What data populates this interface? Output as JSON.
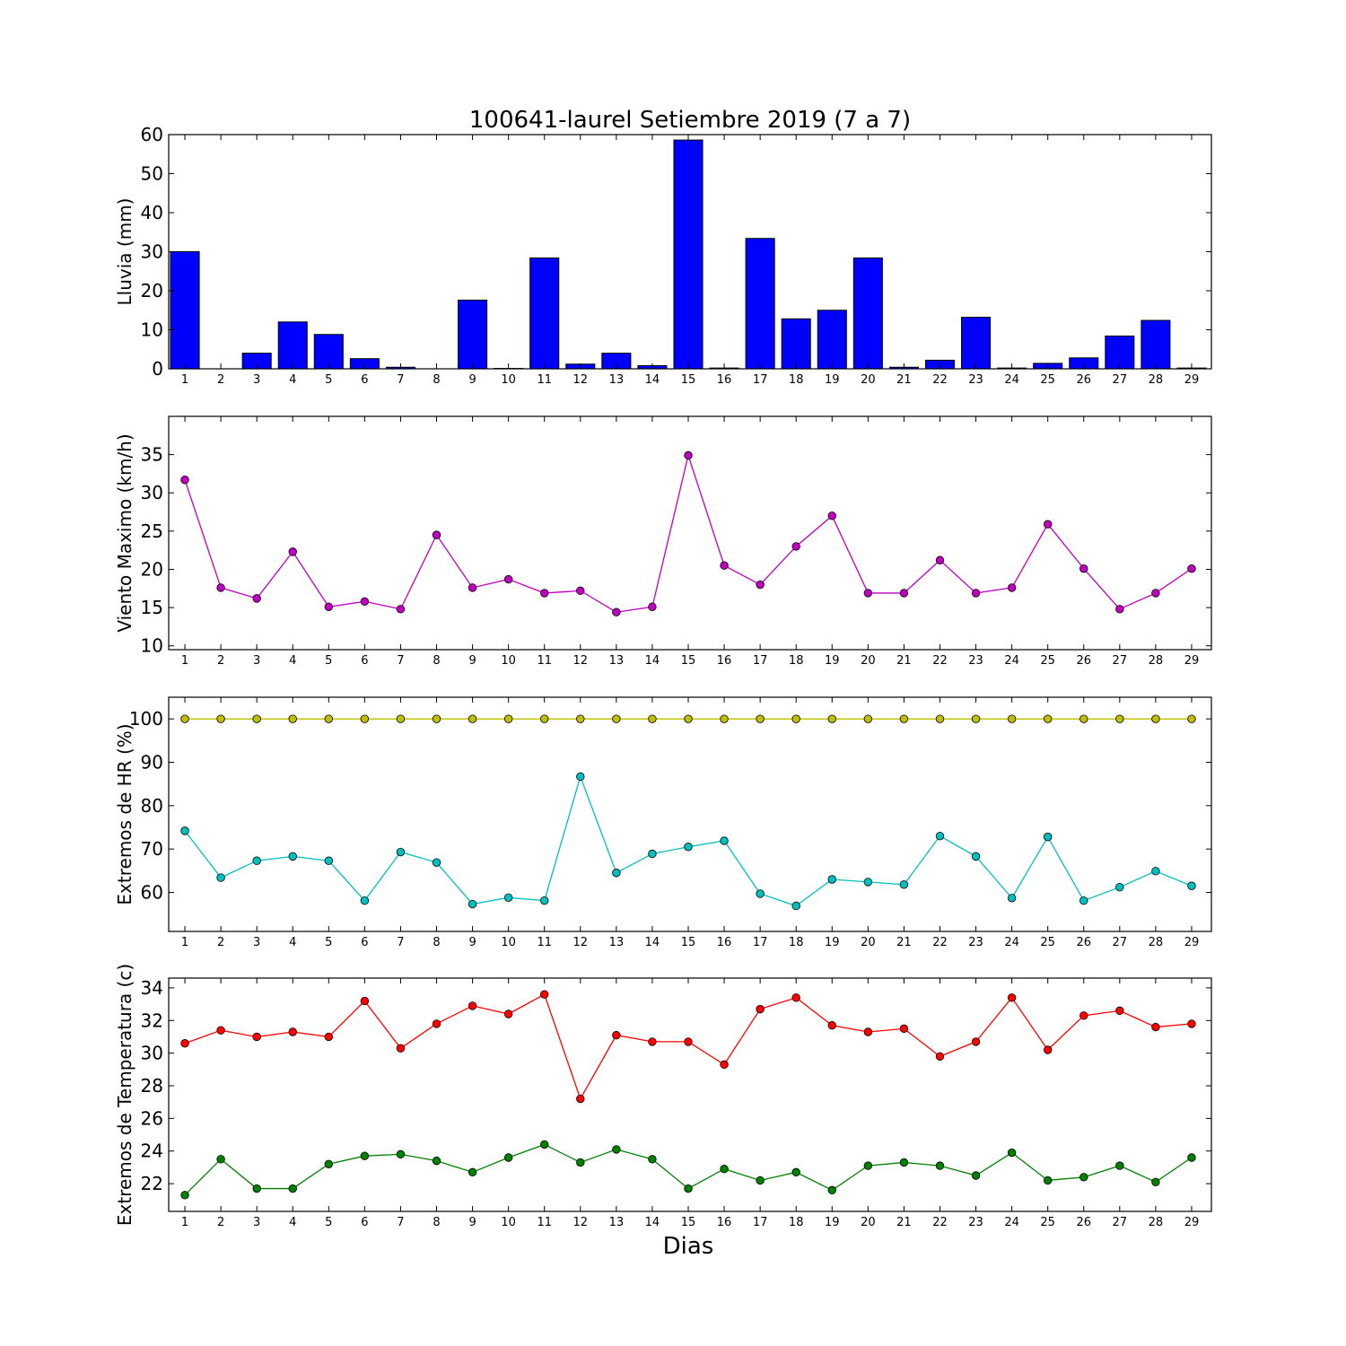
{
  "chart_data": [
    {
      "type": "bar",
      "title": "100641-laurel Setiembre 2019  (7 a 7)",
      "ylabel": "Lluvia (mm)",
      "xlabel": "",
      "categories": [
        "1",
        "2",
        "3",
        "4",
        "5",
        "6",
        "7",
        "8",
        "9",
        "10",
        "11",
        "12",
        "13",
        "14",
        "15",
        "16",
        "17",
        "18",
        "19",
        "20",
        "21",
        "22",
        "23",
        "24",
        "25",
        "26",
        "27",
        "28",
        "29"
      ],
      "values": [
        30.0,
        0.0,
        4.0,
        12.0,
        8.8,
        2.6,
        0.4,
        0.0,
        17.6,
        0.1,
        28.4,
        1.2,
        4.0,
        0.8,
        58.6,
        0.2,
        33.4,
        12.8,
        15.0,
        28.4,
        0.4,
        2.2,
        13.2,
        0.2,
        1.4,
        2.8,
        8.4,
        12.4,
        0.2
      ],
      "ylim": [
        0,
        60
      ],
      "yticks": [
        0,
        10,
        20,
        30,
        40,
        50,
        60
      ],
      "grid": false,
      "color": "#0000ff"
    },
    {
      "type": "line",
      "ylabel": "Viento Maximo (km/h)",
      "xlabel": "",
      "x": [
        1,
        2,
        3,
        4,
        5,
        6,
        7,
        8,
        9,
        10,
        11,
        12,
        13,
        14,
        15,
        16,
        17,
        18,
        19,
        20,
        21,
        22,
        23,
        24,
        25,
        26,
        27,
        28,
        29
      ],
      "series": [
        {
          "values": [
            31.7,
            17.6,
            16.2,
            22.3,
            15.1,
            15.8,
            14.8,
            24.5,
            17.6,
            18.7,
            16.9,
            17.2,
            14.4,
            15.1,
            34.9,
            20.5,
            18.0,
            23.0,
            27.0,
            16.9,
            16.9,
            21.2,
            16.9,
            17.6,
            25.9,
            20.1,
            14.8,
            16.9,
            20.1
          ],
          "color": "#bf00bf"
        }
      ],
      "ylim": [
        9.5,
        40
      ],
      "yticks": [
        10,
        15,
        20,
        25,
        30,
        35
      ],
      "grid": false
    },
    {
      "type": "line",
      "ylabel": "Extremos de HR (%)",
      "xlabel": "",
      "x": [
        1,
        2,
        3,
        4,
        5,
        6,
        7,
        8,
        9,
        10,
        11,
        12,
        13,
        14,
        15,
        16,
        17,
        18,
        19,
        20,
        21,
        22,
        23,
        24,
        25,
        26,
        27,
        28,
        29
      ],
      "series": [
        {
          "values": [
            100,
            100,
            100,
            100,
            100,
            100,
            100,
            100,
            100,
            100,
            100,
            100,
            100,
            100,
            100,
            100,
            100,
            100,
            100,
            100,
            100,
            100,
            100,
            100,
            100,
            100,
            100,
            100,
            100
          ],
          "color": "#bfbf00"
        },
        {
          "values": [
            74.2,
            63.4,
            67.3,
            68.3,
            67.3,
            58.1,
            69.3,
            66.9,
            57.3,
            58.8,
            58.1,
            86.7,
            64.5,
            68.9,
            70.5,
            71.9,
            59.7,
            56.9,
            63.0,
            62.4,
            61.8,
            73.0,
            68.3,
            58.7,
            72.8,
            58.1,
            61.2,
            64.9,
            61.5
          ],
          "color": "#00bfbf"
        }
      ],
      "ylim": [
        51,
        105
      ],
      "yticks": [
        60,
        70,
        80,
        90,
        100
      ],
      "grid": false
    },
    {
      "type": "line",
      "ylabel": "Extremos de Temperatura (c)",
      "xlabel": "Dias",
      "x": [
        1,
        2,
        3,
        4,
        5,
        6,
        7,
        8,
        9,
        10,
        11,
        12,
        13,
        14,
        15,
        16,
        17,
        18,
        19,
        20,
        21,
        22,
        23,
        24,
        25,
        26,
        27,
        28,
        29
      ],
      "series": [
        {
          "values": [
            30.6,
            31.4,
            31.0,
            31.3,
            31.0,
            33.2,
            30.3,
            31.8,
            32.9,
            32.4,
            33.6,
            27.2,
            31.1,
            30.7,
            30.7,
            29.3,
            32.7,
            33.4,
            31.7,
            31.3,
            31.5,
            29.8,
            30.7,
            33.4,
            30.2,
            32.3,
            32.6,
            31.6,
            31.8
          ],
          "color": "#ff0000"
        },
        {
          "values": [
            21.3,
            23.5,
            21.7,
            21.7,
            23.2,
            23.7,
            23.8,
            23.4,
            22.7,
            23.6,
            24.4,
            23.3,
            24.1,
            23.5,
            21.7,
            22.9,
            22.2,
            22.7,
            21.6,
            23.1,
            23.3,
            23.1,
            22.5,
            23.9,
            22.2,
            22.4,
            23.1,
            22.1,
            23.6
          ],
          "color": "#008000"
        }
      ],
      "ylim": [
        20.3,
        34.6
      ],
      "yticks": [
        22,
        24,
        26,
        28,
        30,
        32,
        34
      ],
      "grid": false
    }
  ]
}
